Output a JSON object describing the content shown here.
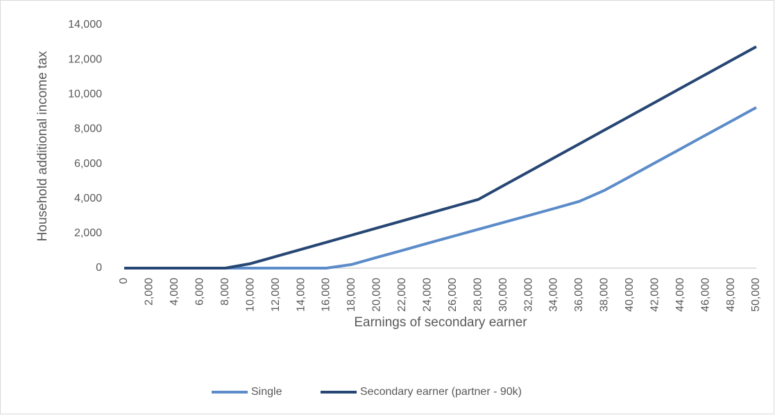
{
  "chart_data": {
    "type": "line",
    "y_label": "Household additional income tax",
    "x_label": "Earnings of secondary earner",
    "categories": [
      "0",
      "2,000",
      "4,000",
      "6,000",
      "8,000",
      "10,000",
      "12,000",
      "14,000",
      "16,000",
      "18,000",
      "20,000",
      "22,000",
      "24,000",
      "26,000",
      "28,000",
      "30,000",
      "32,000",
      "34,000",
      "36,000",
      "38,000",
      "40,000",
      "42,000",
      "44,000",
      "46,000",
      "48,000",
      "50,000"
    ],
    "series": [
      {
        "name": "Single",
        "color": "#5b8bc9",
        "values": [
          0,
          0,
          0,
          0,
          0,
          0,
          0,
          0,
          0,
          210,
          620,
          1020,
          1430,
          1830,
          2230,
          2630,
          3030,
          3430,
          3840,
          4480,
          5270,
          6070,
          6860,
          7660,
          8450,
          9250
        ]
      },
      {
        "name": "Secondary earner (partner - 90k)",
        "color": "#264673",
        "values": [
          0,
          0,
          0,
          0,
          0,
          260,
          670,
          1080,
          1490,
          1900,
          2310,
          2720,
          3130,
          3540,
          3950,
          4750,
          5550,
          6350,
          7150,
          7950,
          8750,
          9550,
          10350,
          11150,
          11950,
          12750
        ]
      }
    ],
    "ylim": [
      0,
      14000
    ],
    "yticks": [
      0,
      {
        "value": 2000,
        "label": "2,000"
      },
      {
        "value": 4000,
        "label": "4,000"
      },
      {
        "value": 6000,
        "label": "6,000"
      },
      {
        "value": 8000,
        "label": "8,000"
      },
      {
        "value": 10000,
        "label": "10,000"
      },
      {
        "value": 12000,
        "label": "12,000"
      },
      {
        "value": 14000,
        "label": "14,000"
      }
    ],
    "grid": false,
    "legend": "bottom"
  }
}
